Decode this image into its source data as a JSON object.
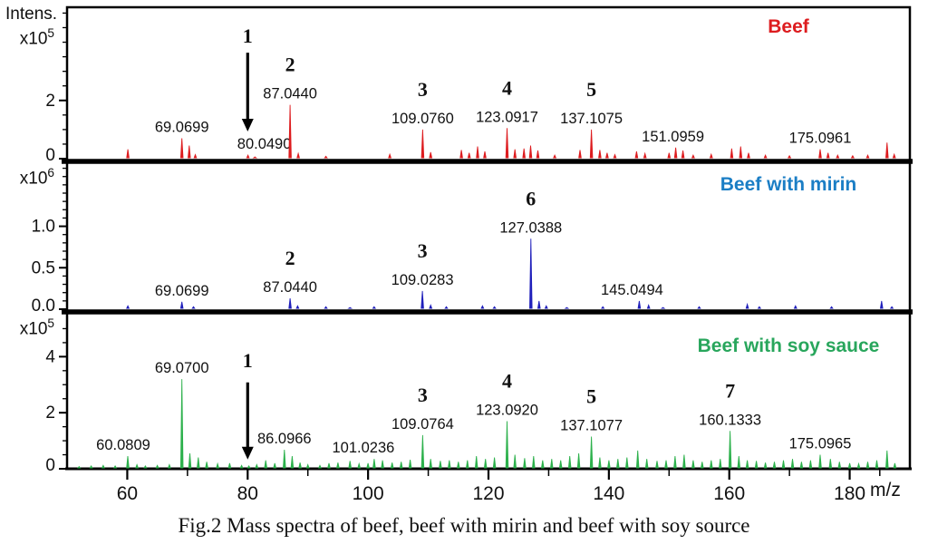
{
  "figure": {
    "intensity_label": "Intens.",
    "mz_label": "m/z",
    "caption": "Fig.2 Mass spectra of beef, beef with mirin and beef with soy source"
  },
  "chart_data": {
    "type": "mass-spectra (3 stacked panels)",
    "x_axis": {
      "label": "m/z",
      "range": [
        50,
        190
      ],
      "major_ticks": [
        60,
        80,
        100,
        120,
        140,
        160,
        180
      ],
      "minor_ticks": [
        70,
        90,
        110,
        130,
        150,
        170,
        185
      ]
    },
    "panels": [
      {
        "id": "beef",
        "title": "Beef",
        "title_color": "#dd1c1f",
        "spectrum_color": "#dd1c1f",
        "scale_prefix": "x10",
        "scale_exponent": "5",
        "y_max": 5.2,
        "y_ticks": {
          "labeled": [
            {
              "v": 2,
              "t": "2"
            },
            {
              "v": 0,
              "t": "0"
            }
          ],
          "minor_step": 0.5
        },
        "labeled_peaks": [
          {
            "mz": 69.0699,
            "h": 0.7,
            "label": "69.0699"
          },
          {
            "mz": 80.049,
            "h": 0.12,
            "label": "80.0490",
            "dx": 18
          },
          {
            "mz": 87.044,
            "h": 1.85,
            "label": "87.0440",
            "num": "2"
          },
          {
            "mz": 109.076,
            "h": 1.0,
            "label": "109.0760",
            "num": "3"
          },
          {
            "mz": 123.0917,
            "h": 1.05,
            "label": "123.0917",
            "num": "4"
          },
          {
            "mz": 137.1075,
            "h": 1.0,
            "label": "137.1075",
            "num": "5"
          },
          {
            "mz": 151.0959,
            "h": 0.38,
            "label": "151.0959",
            "dx": -3
          },
          {
            "mz": 175.0961,
            "h": 0.32,
            "label": "175.0961"
          }
        ],
        "peaks": [
          [
            60.1,
            0.32
          ],
          [
            70.3,
            0.45
          ],
          [
            71.3,
            0.14
          ],
          [
            81.2,
            0.06
          ],
          [
            88.4,
            0.18
          ],
          [
            93.0,
            0.08
          ],
          [
            103.6,
            0.15
          ],
          [
            110.4,
            0.22
          ],
          [
            115.5,
            0.3
          ],
          [
            116.8,
            0.2
          ],
          [
            118.2,
            0.42
          ],
          [
            119.4,
            0.25
          ],
          [
            124.4,
            0.32
          ],
          [
            125.9,
            0.35
          ],
          [
            127.0,
            0.45
          ],
          [
            128.2,
            0.28
          ],
          [
            131.0,
            0.12
          ],
          [
            135.2,
            0.3
          ],
          [
            138.5,
            0.3
          ],
          [
            139.7,
            0.2
          ],
          [
            141.0,
            0.14
          ],
          [
            144.6,
            0.25
          ],
          [
            146.0,
            0.18
          ],
          [
            150.0,
            0.2
          ],
          [
            152.3,
            0.28
          ],
          [
            154.0,
            0.12
          ],
          [
            157.0,
            0.15
          ],
          [
            160.4,
            0.35
          ],
          [
            161.9,
            0.42
          ],
          [
            163.2,
            0.2
          ],
          [
            166.0,
            0.12
          ],
          [
            170.0,
            0.1
          ],
          [
            176.4,
            0.2
          ],
          [
            178.0,
            0.12
          ],
          [
            180.5,
            0.1
          ],
          [
            183.0,
            0.12
          ],
          [
            186.2,
            0.55
          ],
          [
            187.4,
            0.15
          ]
        ],
        "arrow": {
          "mz": 80.0,
          "num": "1",
          "from_frac": 0.3,
          "to_frac": 0.82,
          "num_frac": 0.235
        }
      },
      {
        "id": "beef-with-mirin",
        "title": "Beef with mirin",
        "title_color": "#1b7ec5",
        "spectrum_color": "#2020bb",
        "scale_prefix": "x10",
        "scale_exponent": "6",
        "y_max": 1.75,
        "y_ticks": {
          "labeled": [
            {
              "v": 1.0,
              "t": "1.0"
            },
            {
              "v": 0.5,
              "t": "0.5"
            },
            {
              "v": 0,
              "t": "0.0"
            }
          ],
          "minor_step": 0.1
        },
        "labeled_peaks": [
          {
            "mz": 69.0699,
            "h": 0.09,
            "label": "69.0699"
          },
          {
            "mz": 87.044,
            "h": 0.13,
            "label": "87.0440",
            "num": "2"
          },
          {
            "mz": 109.0283,
            "h": 0.22,
            "label": "109.0283",
            "num": "3"
          },
          {
            "mz": 127.0388,
            "h": 0.85,
            "label": "127.0388",
            "num": "6"
          },
          {
            "mz": 145.0494,
            "h": 0.1,
            "label": "145.0494",
            "dx": -8
          }
        ],
        "peaks": [
          [
            60.1,
            0.04
          ],
          [
            71.0,
            0.03
          ],
          [
            88.3,
            0.04
          ],
          [
            93.0,
            0.03
          ],
          [
            97.0,
            0.02
          ],
          [
            101.0,
            0.03
          ],
          [
            110.4,
            0.05
          ],
          [
            113.0,
            0.03
          ],
          [
            119.0,
            0.04
          ],
          [
            121.0,
            0.03
          ],
          [
            128.4,
            0.1
          ],
          [
            129.6,
            0.04
          ],
          [
            133.0,
            0.02
          ],
          [
            139.0,
            0.03
          ],
          [
            146.6,
            0.05
          ],
          [
            149.0,
            0.02
          ],
          [
            155.0,
            0.03
          ],
          [
            163.0,
            0.06
          ],
          [
            165.0,
            0.03
          ],
          [
            171.0,
            0.04
          ],
          [
            177.0,
            0.03
          ],
          [
            185.3,
            0.1
          ],
          [
            187.0,
            0.03
          ]
        ],
        "arrow": null
      },
      {
        "id": "beef-with-soy-sauce",
        "title": "Beef with soy sauce",
        "title_color": "#28a65c",
        "spectrum_color": "#2db14c",
        "scale_prefix": "x10",
        "scale_exponent": "5",
        "y_max": 5.5,
        "y_ticks": {
          "labeled": [
            {
              "v": 4,
              "t": "4"
            },
            {
              "v": 2,
              "t": "2"
            },
            {
              "v": 0,
              "t": "0"
            }
          ],
          "minor_step": 0.5
        },
        "labeled_peaks": [
          {
            "mz": 60.0809,
            "h": 0.45,
            "label": "60.0809",
            "dx": -5
          },
          {
            "mz": 69.07,
            "h": 3.2,
            "label": "69.0700"
          },
          {
            "mz": 86.0966,
            "h": 0.68,
            "label": "86.0966"
          },
          {
            "mz": 101.0236,
            "h": 0.35,
            "label": "101.0236",
            "dx": -12
          },
          {
            "mz": 109.0764,
            "h": 1.2,
            "label": "109.0764",
            "num": "3"
          },
          {
            "mz": 123.092,
            "h": 1.7,
            "label": "123.0920",
            "num": "4"
          },
          {
            "mz": 137.1077,
            "h": 1.15,
            "label": "137.1077",
            "num": "5"
          },
          {
            "mz": 160.1333,
            "h": 1.35,
            "label": "160.1333",
            "num": "7"
          },
          {
            "mz": 175.0965,
            "h": 0.5,
            "label": "175.0965"
          }
        ],
        "peaks": [
          [
            52.0,
            0.08
          ],
          [
            54.0,
            0.1
          ],
          [
            56.0,
            0.12
          ],
          [
            58.0,
            0.1
          ],
          [
            61.6,
            0.15
          ],
          [
            63.0,
            0.1
          ],
          [
            65.0,
            0.12
          ],
          [
            67.0,
            0.15
          ],
          [
            70.4,
            0.55
          ],
          [
            71.8,
            0.4
          ],
          [
            73.2,
            0.25
          ],
          [
            75.0,
            0.18
          ],
          [
            77.0,
            0.2
          ],
          [
            79.0,
            0.12
          ],
          [
            80.2,
            0.1
          ],
          [
            81.5,
            0.15
          ],
          [
            83.0,
            0.3
          ],
          [
            84.5,
            0.2
          ],
          [
            87.4,
            0.45
          ],
          [
            88.7,
            0.22
          ],
          [
            90.0,
            0.15
          ],
          [
            92.0,
            0.12
          ],
          [
            93.5,
            0.2
          ],
          [
            95.0,
            0.22
          ],
          [
            97.0,
            0.28
          ],
          [
            98.5,
            0.18
          ],
          [
            100.0,
            0.2
          ],
          [
            102.4,
            0.3
          ],
          [
            104.0,
            0.22
          ],
          [
            105.5,
            0.25
          ],
          [
            107.0,
            0.32
          ],
          [
            110.4,
            0.35
          ],
          [
            112.0,
            0.28
          ],
          [
            113.5,
            0.3
          ],
          [
            115.0,
            0.25
          ],
          [
            116.5,
            0.3
          ],
          [
            118.0,
            0.45
          ],
          [
            119.5,
            0.35
          ],
          [
            121.0,
            0.4
          ],
          [
            124.4,
            0.5
          ],
          [
            126.0,
            0.38
          ],
          [
            127.5,
            0.45
          ],
          [
            129.0,
            0.3
          ],
          [
            130.5,
            0.35
          ],
          [
            132.0,
            0.3
          ],
          [
            133.5,
            0.45
          ],
          [
            135.0,
            0.55
          ],
          [
            138.5,
            0.4
          ],
          [
            140.0,
            0.3
          ],
          [
            141.5,
            0.35
          ],
          [
            143.0,
            0.4
          ],
          [
            144.8,
            0.65
          ],
          [
            146.3,
            0.35
          ],
          [
            148.0,
            0.28
          ],
          [
            149.5,
            0.3
          ],
          [
            151.0,
            0.45
          ],
          [
            152.5,
            0.5
          ],
          [
            154.0,
            0.3
          ],
          [
            155.5,
            0.25
          ],
          [
            157.0,
            0.3
          ],
          [
            158.5,
            0.35
          ],
          [
            161.6,
            0.45
          ],
          [
            163.0,
            0.3
          ],
          [
            164.5,
            0.28
          ],
          [
            166.0,
            0.22
          ],
          [
            167.5,
            0.25
          ],
          [
            169.0,
            0.3
          ],
          [
            170.5,
            0.35
          ],
          [
            172.0,
            0.25
          ],
          [
            173.5,
            0.3
          ],
          [
            176.8,
            0.35
          ],
          [
            178.3,
            0.25
          ],
          [
            180.0,
            0.2
          ],
          [
            181.5,
            0.18
          ],
          [
            183.0,
            0.25
          ],
          [
            184.5,
            0.3
          ],
          [
            186.2,
            0.65
          ],
          [
            187.5,
            0.2
          ]
        ],
        "arrow": {
          "mz": 80.0,
          "num": "1",
          "from_frac": 0.44,
          "to_frac": 0.94,
          "num_frac": 0.34
        }
      }
    ]
  }
}
